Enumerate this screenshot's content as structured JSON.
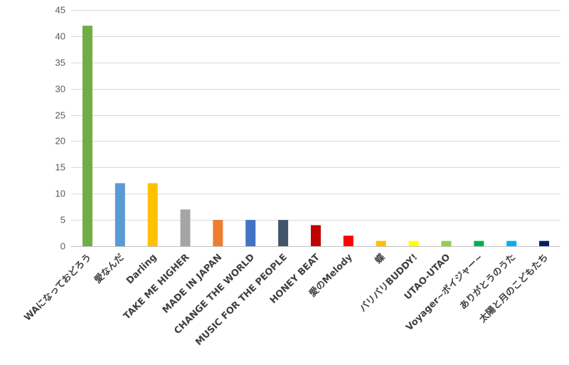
{
  "chart_data": {
    "type": "bar",
    "title": "",
    "xlabel": "",
    "ylabel": "",
    "ylim": [
      0,
      45
    ],
    "yticks": [
      0,
      5,
      10,
      15,
      20,
      25,
      30,
      35,
      40,
      45
    ],
    "grid": true,
    "categories": [
      "WAになっておどろう",
      "愛なんだ",
      "Darling",
      "TAKE ME HIGHER",
      "MADE IN JAPAN",
      "CHANGE THE WORLD",
      "MUSIC FOR THE PEOPLE",
      "HONEY BEAT",
      "愛のMelody",
      "蝶",
      "バリバリBUDDY!",
      "UTAO-UTAO",
      "Voyager~ボイジャー~",
      "ありがとうのうた",
      "太陽と月のこどもたち"
    ],
    "values": [
      42,
      12,
      12,
      7,
      5,
      5,
      5,
      4,
      2,
      1,
      1,
      1,
      1,
      1,
      1
    ],
    "colors": [
      "#70ad47",
      "#5b9bd5",
      "#ffc000",
      "#a5a5a5",
      "#ed7d31",
      "#4472c4",
      "#44546a",
      "#c00000",
      "#ff0000",
      "#ffc000",
      "#ffff00",
      "#92d050",
      "#00b050",
      "#00b0f0",
      "#002060"
    ]
  }
}
